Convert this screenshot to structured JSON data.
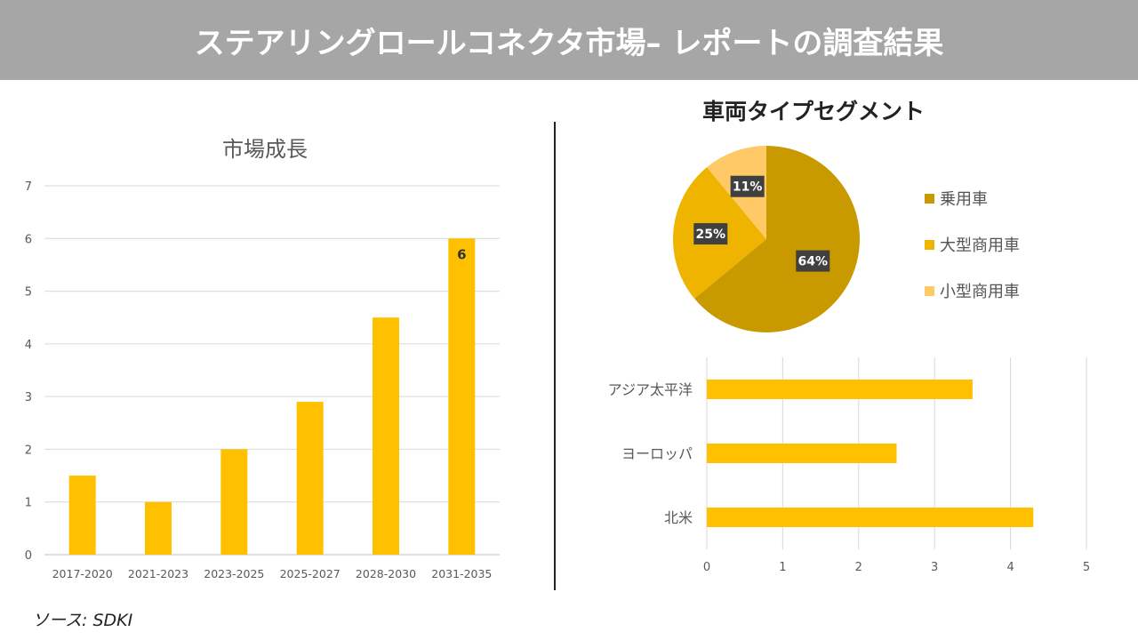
{
  "header": {
    "title": "ステアリングロールコネクタ市場– レポートの調査結果"
  },
  "source": "ソース: SDKI",
  "chart_data": [
    {
      "type": "bar",
      "title": "市場成長",
      "categories": [
        "2017-2020",
        "2021-2023",
        "2023-2025",
        "2025-2027",
        "2028-2030",
        "2031-2035"
      ],
      "values": [
        1.5,
        1,
        2,
        2.9,
        4.5,
        6
      ],
      "data_labels": {
        "2031-2035": "6"
      },
      "ylim": [
        0,
        7
      ],
      "yticks": [
        0,
        1,
        2,
        3,
        4,
        5,
        6,
        7
      ],
      "grid": true,
      "color": "#FFC000"
    },
    {
      "type": "pie",
      "title": "車両タイプセグメント",
      "categories": [
        "乗用車",
        "大型商用車",
        "小型商用車"
      ],
      "values": [
        64,
        25,
        11
      ],
      "labels": [
        "64%",
        "25%",
        "11%"
      ],
      "colors": [
        "#C89A00",
        "#EEB400",
        "#FFCA66"
      ],
      "legend": "right"
    },
    {
      "type": "bar",
      "orientation": "horizontal",
      "categories": [
        "アジア太平洋",
        "ヨーロッパ",
        "北米"
      ],
      "values": [
        3.5,
        2.5,
        4.3
      ],
      "xlim": [
        0,
        5
      ],
      "xticks": [
        0,
        1,
        2,
        3,
        4,
        5
      ],
      "grid": true,
      "color": "#FFC000"
    }
  ]
}
